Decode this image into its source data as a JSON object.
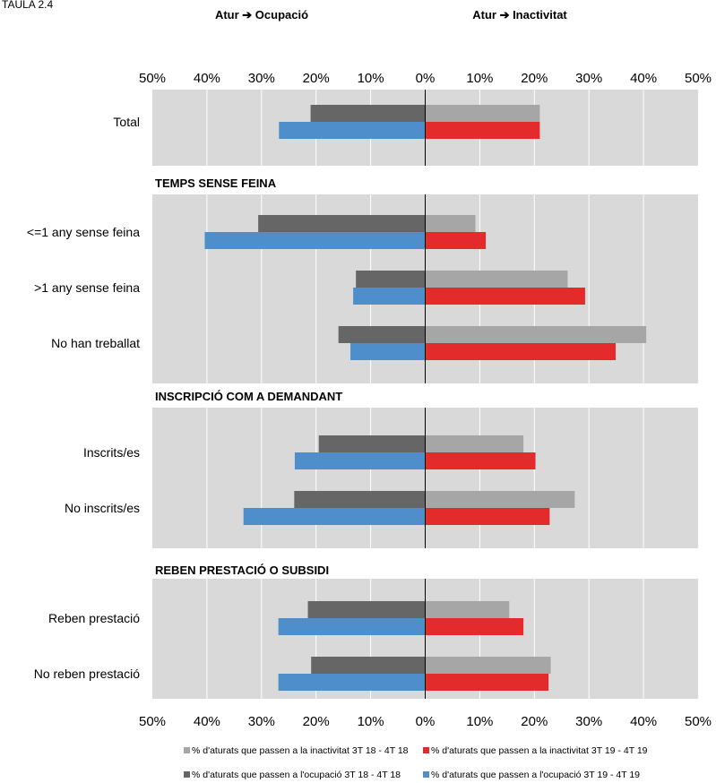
{
  "top_text": "TAULA 2.4",
  "header_left": "Atur ➔ Ocupació",
  "header_right": "Atur ➔ Inactivitat",
  "colors": {
    "inact_prev": "#a6a6a6",
    "inact_curr": "#e32b2b",
    "ocup_prev": "#666666",
    "ocup_curr": "#4e8ecb",
    "panel_bg": "#d9d9d9"
  },
  "chart_data": {
    "type": "bar",
    "orientation": "horizontal-diverging",
    "xlim": [
      -50,
      50
    ],
    "ticks": [
      -50,
      -40,
      -30,
      -20,
      -10,
      0,
      10,
      20,
      30,
      40,
      50
    ],
    "tick_labels": [
      "50%",
      "40%",
      "30%",
      "20%",
      "10%",
      "0%",
      "10%",
      "20%",
      "30%",
      "40%",
      "50%"
    ],
    "grid": true,
    "legend_position": "bottom",
    "series": [
      {
        "key": "inact_prev",
        "name": "% d'aturats que passen a la inactivitat 3T 18 - 4T 18",
        "side": "right"
      },
      {
        "key": "inact_curr",
        "name": "% d'aturats que passen a la inactivitat 3T 19 - 4T 19",
        "side": "right"
      },
      {
        "key": "ocup_prev",
        "name": "% d'aturats que passen a l'ocupació 3T 18 - 4T 18",
        "side": "left"
      },
      {
        "key": "ocup_curr",
        "name": "% d'aturats que passen a l'ocupació 3T 19 - 4T 19",
        "side": "left"
      }
    ],
    "sections": [
      {
        "title": "",
        "categories": [
          {
            "label": "Total",
            "ocup_prev": 21,
            "ocup_curr": 26.8,
            "inact_prev": 21,
            "inact_curr": 21
          }
        ]
      },
      {
        "title": "TEMPS SENSE FEINA",
        "categories": [
          {
            "label": "<=1 any sense feina",
            "ocup_prev": 30.6,
            "ocup_curr": 40.4,
            "inact_prev": 9.2,
            "inact_curr": 11.1
          },
          {
            "label": ">1 any sense feina",
            "ocup_prev": 12.7,
            "ocup_curr": 13.2,
            "inact_prev": 26.1,
            "inact_curr": 29.3
          },
          {
            "label": "No han treballat",
            "ocup_prev": 15.9,
            "ocup_curr": 13.7,
            "inact_prev": 40.5,
            "inact_curr": 34.9
          }
        ]
      },
      {
        "title": "INSCRIPCIÓ COM A DEMANDANT",
        "categories": [
          {
            "label": "Inscrits/es",
            "ocup_prev": 19.5,
            "ocup_curr": 23.9,
            "inact_prev": 18,
            "inact_curr": 20.2
          },
          {
            "label": "No inscrits/es",
            "ocup_prev": 24,
            "ocup_curr": 33.3,
            "inact_prev": 27.4,
            "inact_curr": 22.8
          }
        ]
      },
      {
        "title": "REBEN PRESTACIÓ O SUBSIDI",
        "categories": [
          {
            "label": "Reben prestació",
            "ocup_prev": 21.5,
            "ocup_curr": 26.9,
            "inact_prev": 15.4,
            "inact_curr": 18
          },
          {
            "label": "No reben prestació",
            "ocup_prev": 20.9,
            "ocup_curr": 26.9,
            "inact_prev": 23,
            "inact_curr": 22.6
          }
        ]
      }
    ]
  }
}
